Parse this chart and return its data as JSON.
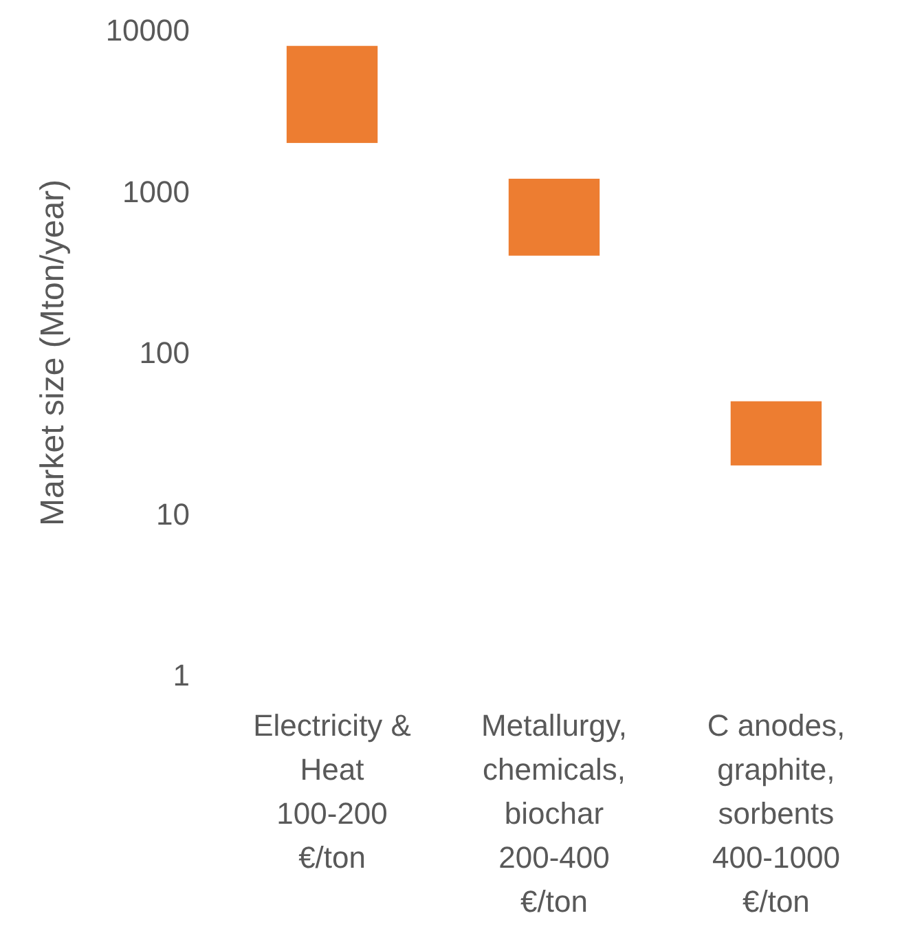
{
  "chart_data": {
    "type": "bar",
    "ylabel": "Market size (Mton/year)",
    "categories": [
      "Electricity & Heat 100-200 €/ton",
      "Metallurgy, chemicals, biochar 200-400 €/ton",
      "C anodes, graphite, sorbents 400-1000 €/ton"
    ],
    "base": [
      2000,
      400,
      20
    ],
    "values": [
      6000,
      800,
      30
    ],
    "color": "#ed7d31",
    "log": true,
    "ylim": [
      1,
      10000
    ],
    "yticks": [
      1,
      10,
      100,
      1000,
      10000
    ],
    "grid": false
  }
}
